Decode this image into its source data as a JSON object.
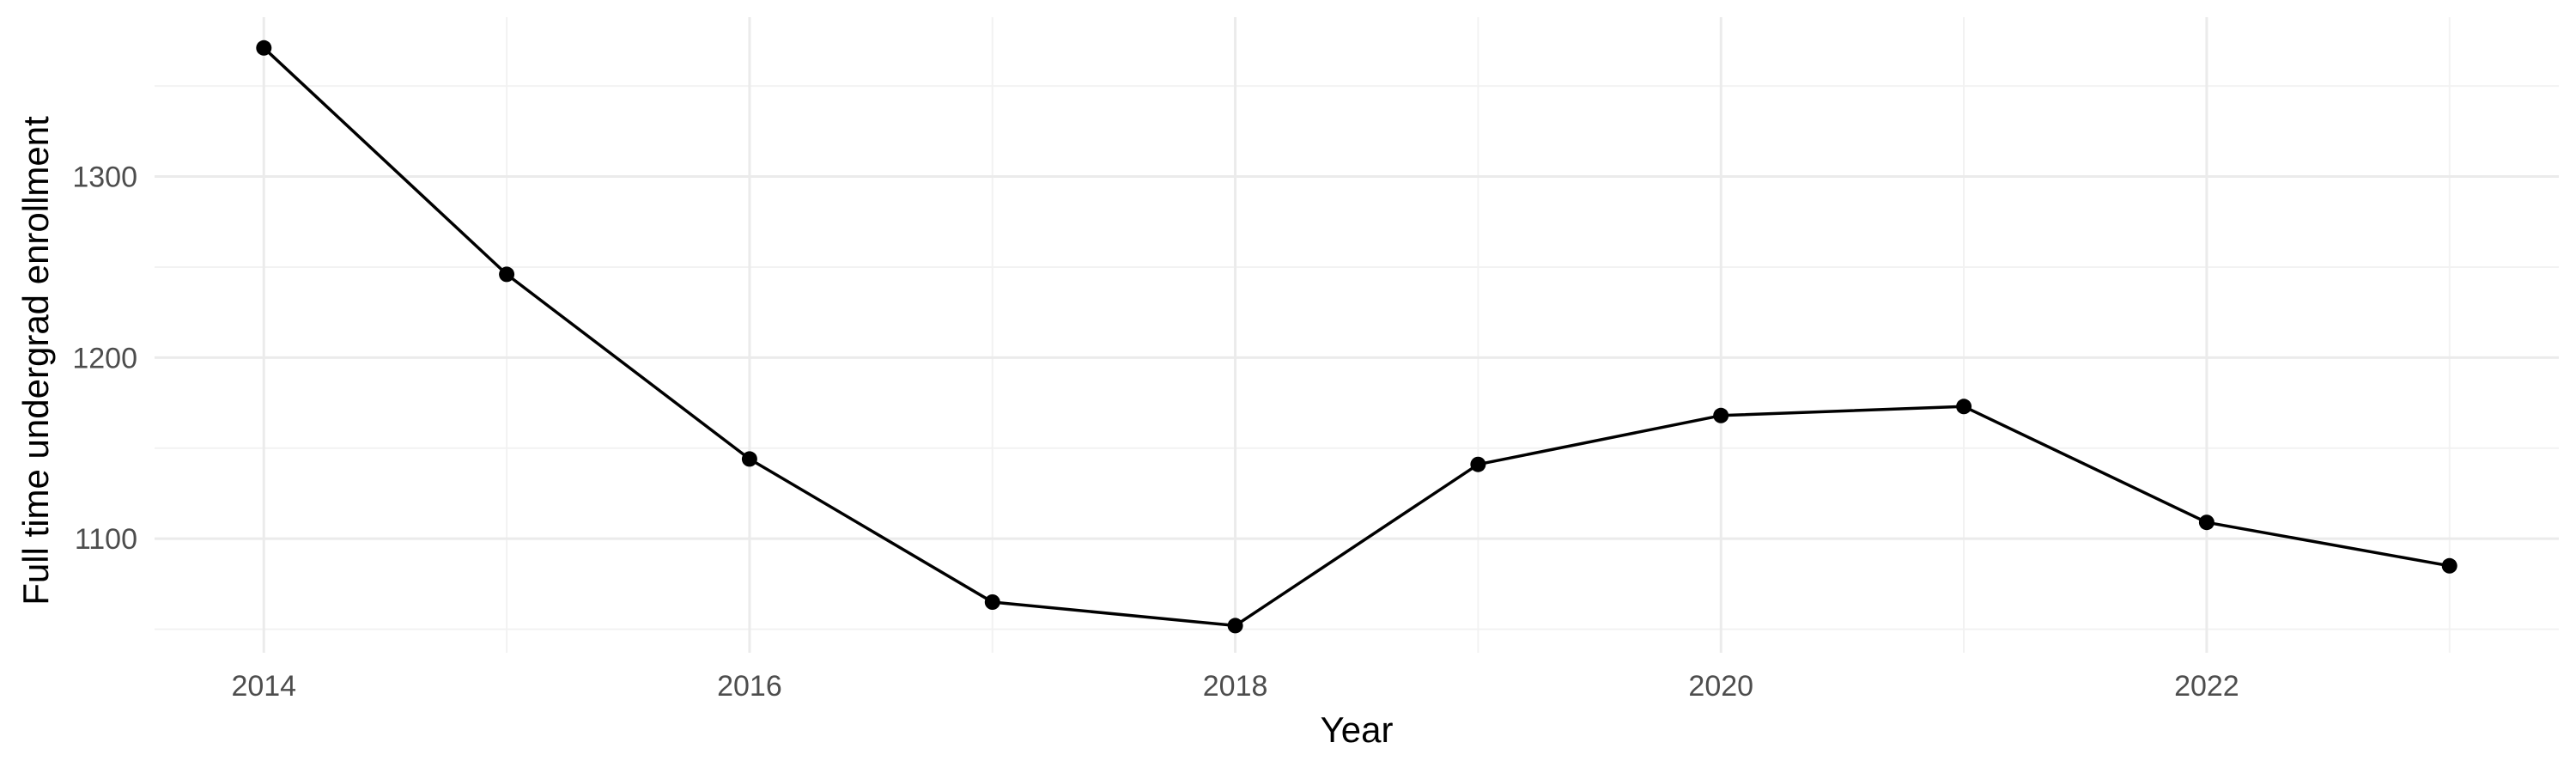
{
  "chart_data": {
    "type": "line",
    "title": "",
    "xlabel": "Year",
    "ylabel": "Full time undergrad enrollment",
    "x": [
      2014,
      2015,
      2016,
      2017,
      2018,
      2019,
      2020,
      2021,
      2022,
      2023
    ],
    "series": [
      {
        "values": [
          1371,
          1246,
          1144,
          1065,
          1052,
          1141,
          1168,
          1173,
          1109,
          1085
        ],
        "color": "#000000"
      }
    ],
    "xlim": [
      2013.55,
      2023.45
    ],
    "ylim": [
      1037,
      1388
    ],
    "x_ticks": [
      2014,
      2016,
      2018,
      2020,
      2022
    ],
    "x_tick_labels": [
      "2014",
      "2016",
      "2018",
      "2020",
      "2022"
    ],
    "y_ticks": [
      1100,
      1200,
      1300
    ],
    "y_tick_labels": [
      "1100",
      "1200",
      "1300"
    ],
    "grid": true,
    "legend": "none"
  }
}
